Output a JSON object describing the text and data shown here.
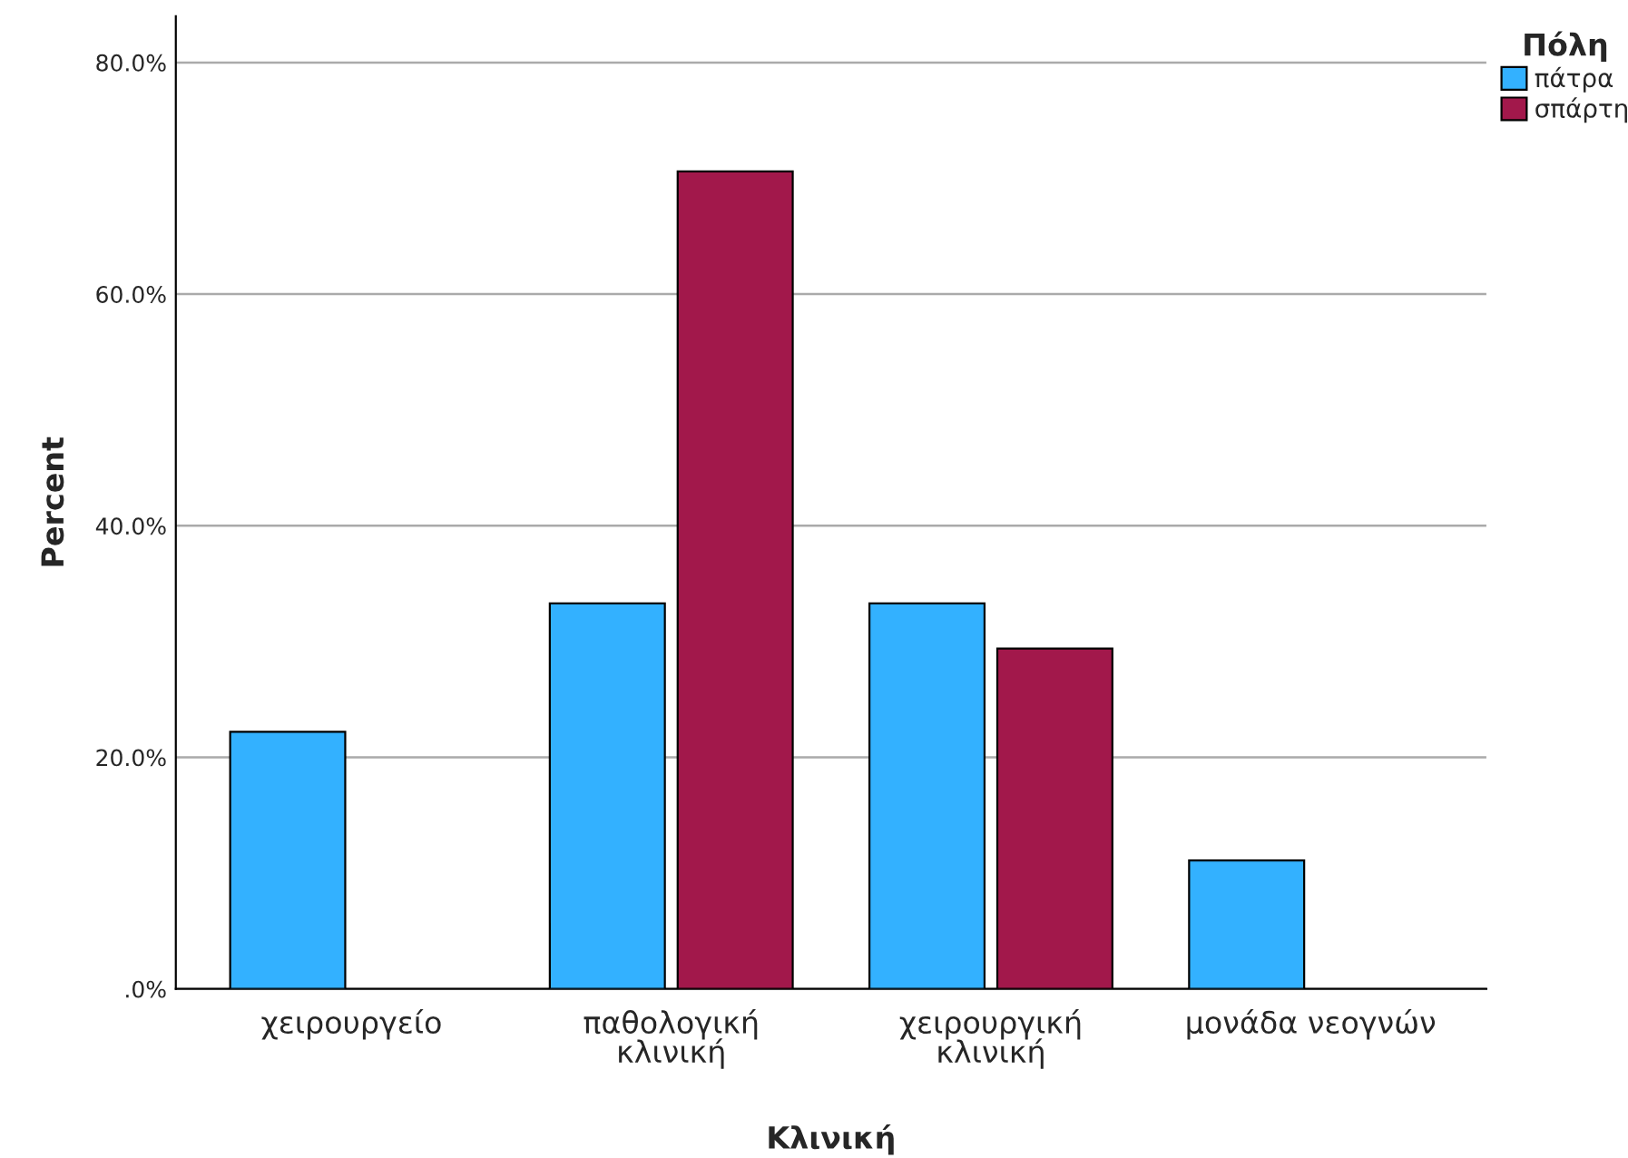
{
  "chart_data": {
    "type": "bar",
    "xlabel": "Κλινική",
    "ylabel": "Percent",
    "legend_title": "Πόλη",
    "categories": [
      "χειρουργείο",
      "παθολογική\nκλινική",
      "χειρουργική\nκλινική",
      "μονάδα νεογνών"
    ],
    "series": [
      {
        "name": "πάτρα",
        "color": "#33b1ff",
        "values": [
          22.2,
          33.3,
          33.3,
          11.1
        ]
      },
      {
        "name": "σπάρτη",
        "color": "#a2184b",
        "values": [
          null,
          70.6,
          29.4,
          null
        ]
      }
    ],
    "ylim": [
      0,
      84
    ],
    "yticks": [
      {
        "value": 0,
        "label": ".0%"
      },
      {
        "value": 20,
        "label": "20.0%"
      },
      {
        "value": 40,
        "label": "40.0%"
      },
      {
        "value": 60,
        "label": "60.0%"
      },
      {
        "value": 80,
        "label": "80.0%"
      }
    ],
    "grid": "y",
    "legend": "top right"
  }
}
